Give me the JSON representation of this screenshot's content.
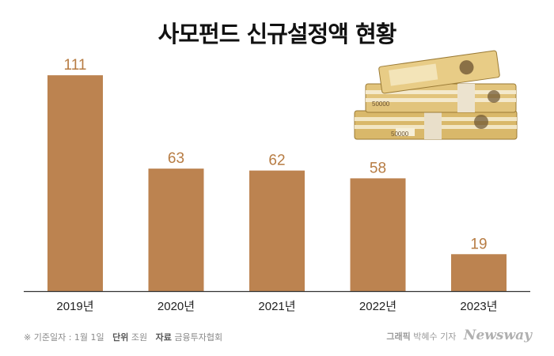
{
  "chart_data": {
    "type": "bar",
    "title": "사모펀드 신규설정액 현황",
    "categories": [
      "2019년",
      "2020년",
      "2021년",
      "2022년",
      "2023년"
    ],
    "values": [
      111,
      63,
      62,
      58,
      19
    ],
    "ylim": [
      0,
      120
    ],
    "grid": false,
    "legend": "none",
    "bar_color": "#bc8350",
    "value_label_color": "#b77c43"
  },
  "footer": {
    "note": "※ 기준일자 : 1월 1일",
    "unit_label": "단위",
    "unit_value": "조원",
    "source_label": "자료",
    "source_value": "금융투자협회"
  },
  "credit": {
    "graphic": "그래픽",
    "author": "박혜수 기자",
    "brand": "Newsway"
  },
  "illustration": {
    "banknote_text": "50000"
  }
}
